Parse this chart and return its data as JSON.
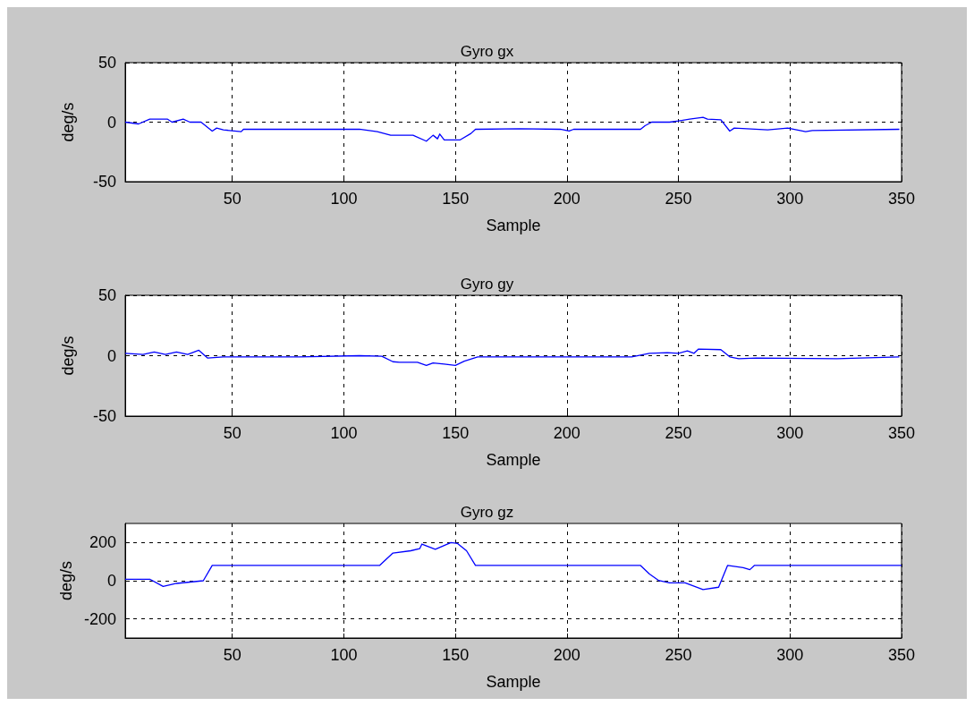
{
  "chart_data": [
    {
      "type": "line",
      "title": "Gyro gx",
      "xlabel": "Sample",
      "ylabel": "deg/s",
      "xlim": [
        2,
        350
      ],
      "xticks": [
        50,
        100,
        150,
        200,
        250,
        300,
        350
      ],
      "ylim": [
        -50,
        50
      ],
      "yticks": [
        -50,
        0,
        50
      ],
      "grid": true,
      "marker": "none",
      "line_style": "solid",
      "series": [
        {
          "color": "#0000ff",
          "x": [
            2,
            8,
            13,
            21,
            23,
            28,
            31,
            36,
            41,
            43,
            46,
            54,
            55,
            80,
            107,
            115,
            121,
            131,
            137,
            140,
            142,
            143,
            145,
            152,
            157,
            159,
            179,
            197,
            201,
            203,
            233,
            235,
            238,
            246,
            250,
            255,
            261,
            263,
            269,
            273,
            275,
            290,
            299,
            307,
            310,
            349
          ],
          "values": [
            0,
            -1.5,
            2.5,
            2.5,
            0,
            2.5,
            0,
            0,
            -7.5,
            -5,
            -6.5,
            -8,
            -6,
            -6,
            -6,
            -8,
            -11,
            -11,
            -16,
            -11,
            -14,
            -10,
            -15,
            -15,
            -9.5,
            -6,
            -5.5,
            -6,
            -7.5,
            -6,
            -6,
            -3,
            0,
            0,
            1,
            2.5,
            4,
            2.5,
            2,
            -7.5,
            -5,
            -6.5,
            -5,
            -8,
            -7,
            -6
          ]
        }
      ]
    },
    {
      "type": "line",
      "title": "Gyro gy",
      "xlabel": "Sample",
      "ylabel": "deg/s",
      "xlim": [
        2,
        350
      ],
      "xticks": [
        50,
        100,
        150,
        200,
        250,
        300,
        350
      ],
      "ylim": [
        -50,
        50
      ],
      "yticks": [
        -50,
        0,
        50
      ],
      "grid": true,
      "marker": "none",
      "line_style": "solid",
      "series": [
        {
          "color": "#0000ff",
          "x": [
            2,
            10,
            15,
            20,
            25,
            30,
            35,
            39,
            46,
            80,
            107,
            117,
            122,
            125,
            133,
            137,
            140,
            145,
            150,
            154,
            160,
            179,
            229,
            237,
            245,
            250,
            254,
            257,
            259,
            269,
            273,
            277,
            285,
            321,
            349
          ],
          "values": [
            2,
            1,
            3,
            1,
            3,
            1,
            4.5,
            -2,
            -1,
            -1,
            0,
            -0.5,
            -5,
            -5.5,
            -5.5,
            -8,
            -6,
            -7,
            -8,
            -4.5,
            -1,
            -1,
            -1,
            2,
            2.5,
            2,
            4,
            2,
            5.5,
            5,
            -1,
            -2.5,
            -2,
            -2.5,
            -1
          ]
        }
      ]
    },
    {
      "type": "line",
      "title": "Gyro gz",
      "xlabel": "Sample",
      "ylabel": "deg/s",
      "xlim": [
        2,
        350
      ],
      "xticks": [
        50,
        100,
        150,
        200,
        250,
        300,
        350
      ],
      "ylim": [
        -300,
        300
      ],
      "yticks": [
        -200,
        0,
        200
      ],
      "grid": true,
      "marker": "none",
      "line_style": "solid",
      "series": [
        {
          "color": "#0000ff",
          "x": [
            2,
            13,
            19,
            25,
            37,
            41,
            116,
            122,
            130,
            134,
            135,
            141,
            148,
            151,
            155,
            159,
            233,
            237,
            241,
            246,
            253,
            261,
            268,
            272,
            279,
            282,
            284,
            350
          ],
          "values": [
            8,
            8,
            -30,
            -14,
            0,
            80,
            80,
            145,
            157,
            168,
            192,
            165,
            200,
            195,
            157,
            80,
            80,
            35,
            2,
            -11,
            -11,
            -46,
            -34,
            80,
            69,
            58,
            80,
            80
          ]
        }
      ]
    }
  ]
}
